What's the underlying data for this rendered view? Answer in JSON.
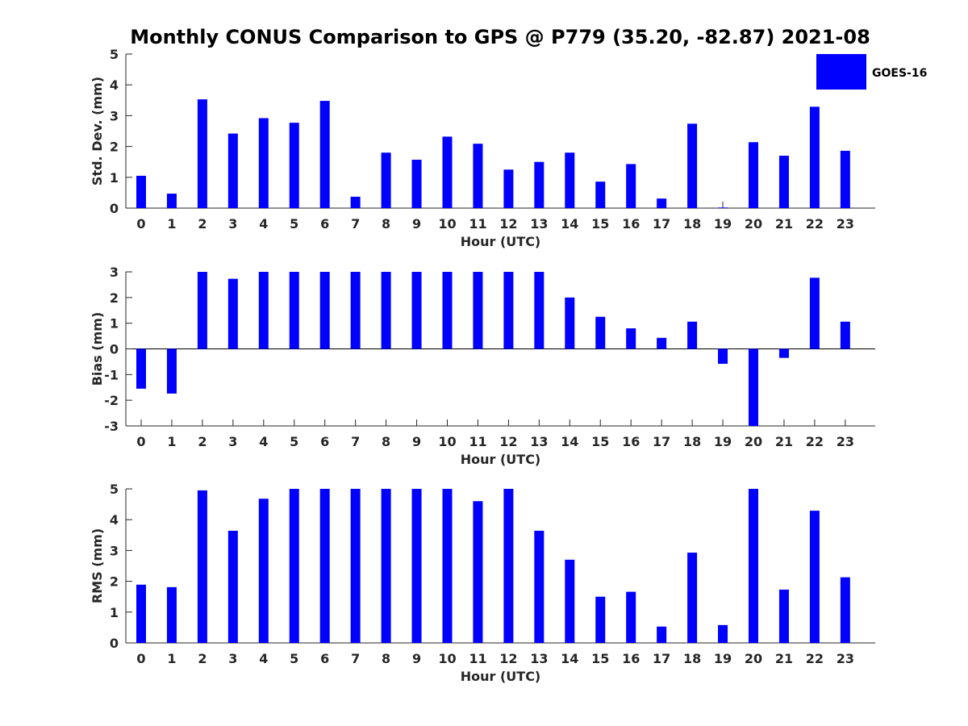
{
  "title": "Monthly CONUS Comparison to GPS @ P779 (35.20, -82.87) 2021-08",
  "legend": {
    "label": "GOES-16",
    "color": "#0000ff"
  },
  "chart_data": [
    {
      "type": "bar",
      "name": "std-dev",
      "xlabel": "Hour (UTC)",
      "ylabel": "Std. Dev. (mm)",
      "ylim": [
        0,
        5
      ],
      "yticks": [
        0,
        1,
        2,
        3,
        4,
        5
      ],
      "categories": [
        "0",
        "1",
        "2",
        "3",
        "4",
        "5",
        "6",
        "7",
        "8",
        "9",
        "10",
        "11",
        "12",
        "13",
        "14",
        "15",
        "16",
        "17",
        "18",
        "19",
        "20",
        "21",
        "22",
        "23"
      ],
      "values": [
        1.05,
        0.47,
        3.53,
        2.42,
        2.92,
        2.77,
        3.48,
        0.37,
        1.8,
        1.57,
        2.32,
        2.09,
        1.25,
        1.5,
        1.8,
        0.86,
        1.43,
        0.31,
        2.74,
        0.02,
        2.14,
        1.7,
        3.29,
        1.86
      ]
    },
    {
      "type": "bar",
      "name": "bias",
      "xlabel": "Hour (UTC)",
      "ylabel": "Bias (mm)",
      "ylim": [
        -3,
        3
      ],
      "yticks": [
        -3,
        -2,
        -1,
        0,
        1,
        2,
        3
      ],
      "categories": [
        "0",
        "1",
        "2",
        "3",
        "4",
        "5",
        "6",
        "7",
        "8",
        "9",
        "10",
        "11",
        "12",
        "13",
        "14",
        "15",
        "16",
        "17",
        "18",
        "19",
        "20",
        "21",
        "22",
        "23"
      ],
      "values": [
        -1.55,
        -1.74,
        3.0,
        2.73,
        3.0,
        3.0,
        3.0,
        3.0,
        3.0,
        3.0,
        3.0,
        3.0,
        3.0,
        3.0,
        2.0,
        1.25,
        0.8,
        0.43,
        1.06,
        -0.58,
        -3.0,
        -0.35,
        2.77,
        1.06
      ]
    },
    {
      "type": "bar",
      "name": "rms",
      "xlabel": "Hour (UTC)",
      "ylabel": "RMS (mm)",
      "ylim": [
        0,
        5
      ],
      "yticks": [
        0,
        1,
        2,
        3,
        4,
        5
      ],
      "categories": [
        "0",
        "1",
        "2",
        "3",
        "4",
        "5",
        "6",
        "7",
        "8",
        "9",
        "10",
        "11",
        "12",
        "13",
        "14",
        "15",
        "16",
        "17",
        "18",
        "19",
        "20",
        "21",
        "22",
        "23"
      ],
      "values": [
        1.89,
        1.81,
        4.95,
        3.64,
        4.68,
        5.0,
        5.0,
        5.0,
        5.0,
        5.0,
        5.0,
        4.6,
        5.0,
        3.64,
        2.7,
        1.5,
        1.66,
        0.53,
        2.93,
        0.58,
        5.0,
        1.73,
        4.29,
        2.13
      ]
    }
  ]
}
